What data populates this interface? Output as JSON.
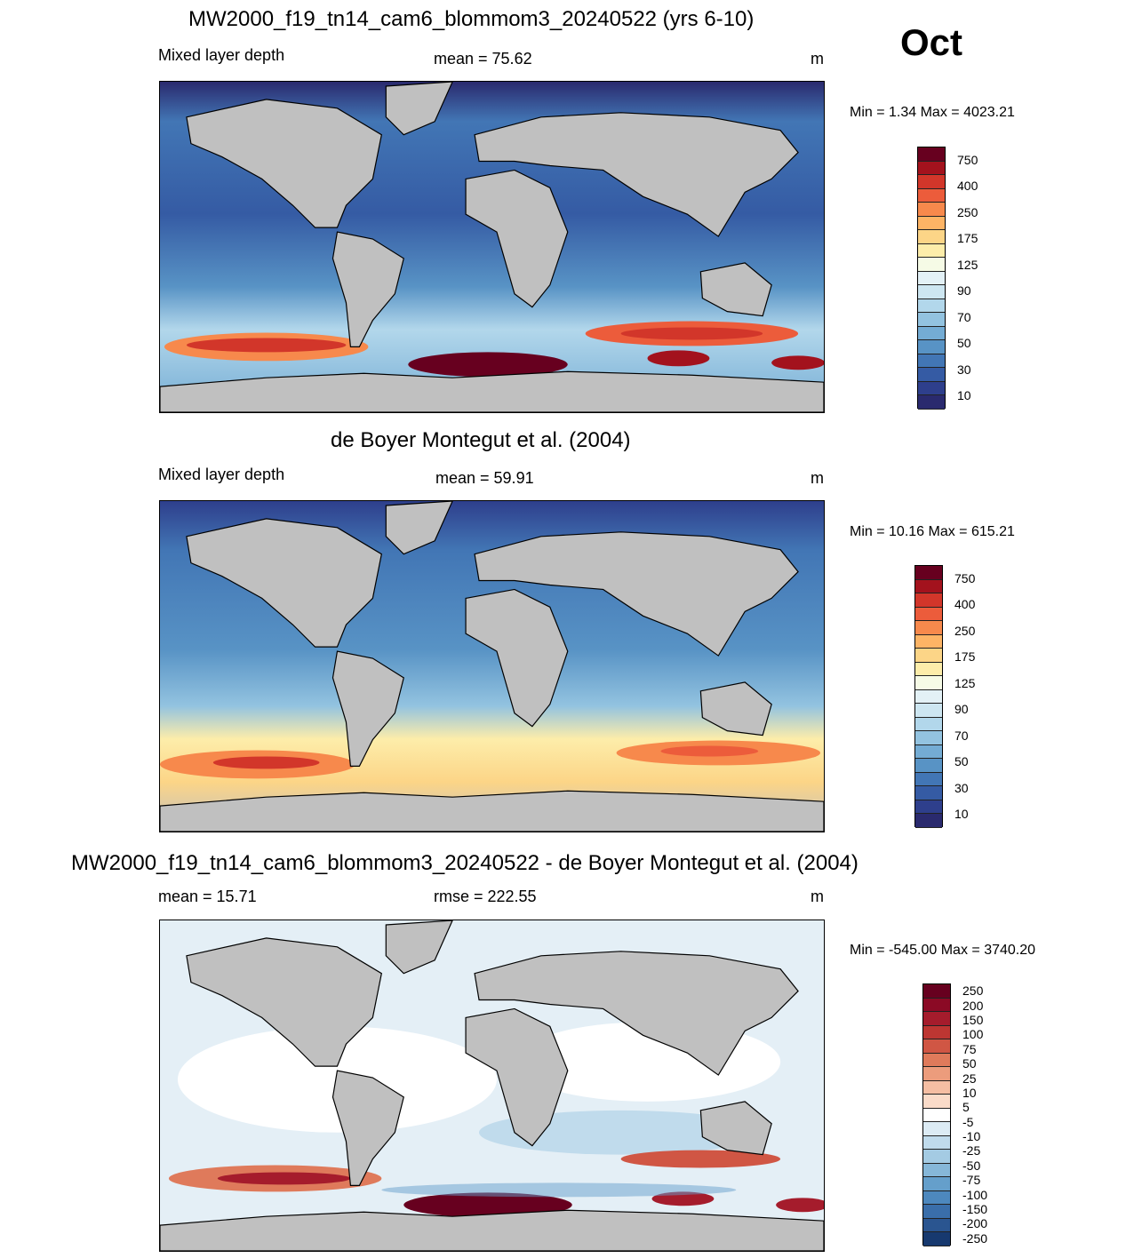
{
  "month": "Oct",
  "panels": [
    {
      "title": "MW2000_f19_tn14_cam6_blommom3_20240522 (yrs 6-10)",
      "left_label": "Mixed layer depth",
      "center_label": "mean =  75.62",
      "units": "m",
      "minmax": "Min =   1.34 Max = 4023.21",
      "colorbar": {
        "labels": [
          "750",
          "400",
          "250",
          "175",
          "125",
          "90",
          "70",
          "50",
          "30",
          "10"
        ],
        "colors": [
          "#67001f",
          "#a3121d",
          "#d2362a",
          "#ec5c3b",
          "#f7894c",
          "#fdb465",
          "#fcd587",
          "#fdedaa",
          "#f6fbe6",
          "#e3f1f6",
          "#cde6f1",
          "#b2d7eb",
          "#93c3e0",
          "#74acd4",
          "#5893c5",
          "#4276b5",
          "#355ba4",
          "#2e3f8c",
          "#2a2a6e"
        ]
      }
    },
    {
      "title": "de Boyer Montegut et al. (2004)",
      "left_label": "Mixed layer depth",
      "center_label": "mean =  59.91",
      "units": "m",
      "minmax": "Min =  10.16 Max = 615.21",
      "colorbar": {
        "labels": [
          "750",
          "400",
          "250",
          "175",
          "125",
          "90",
          "70",
          "50",
          "30",
          "10"
        ],
        "colors": [
          "#67001f",
          "#a3121d",
          "#d2362a",
          "#ec5c3b",
          "#f7894c",
          "#fdb465",
          "#fcd587",
          "#fdedaa",
          "#f6fbe6",
          "#e3f1f6",
          "#cde6f1",
          "#b2d7eb",
          "#93c3e0",
          "#74acd4",
          "#5893c5",
          "#4276b5",
          "#355ba4",
          "#2e3f8c",
          "#2a2a6e"
        ]
      }
    },
    {
      "title": "MW2000_f19_tn14_cam6_blommom3_20240522 - de Boyer Montegut et al. (2004)",
      "left_label": "mean =  15.71",
      "center_label": "rmse = 222.55",
      "units": "m",
      "minmax": "Min = -545.00 Max = 3740.20",
      "colorbar": {
        "labels": [
          "250",
          "200",
          "150",
          "100",
          "75",
          "50",
          "25",
          "10",
          "5",
          "-5",
          "-10",
          "-25",
          "-50",
          "-75",
          "-100",
          "-150",
          "-200",
          "-250"
        ],
        "colors": [
          "#67001f",
          "#8b0a25",
          "#a51c2c",
          "#bd3632",
          "#d05644",
          "#df7a5b",
          "#ec9c7c",
          "#f5bea3",
          "#fadbc9",
          "#ffffff",
          "#dcebf4",
          "#c0dbec",
          "#a4cbe3",
          "#86b7d8",
          "#659fcb",
          "#4d88be",
          "#3a6eaa",
          "#2a5590",
          "#17396f"
        ]
      }
    }
  ]
}
